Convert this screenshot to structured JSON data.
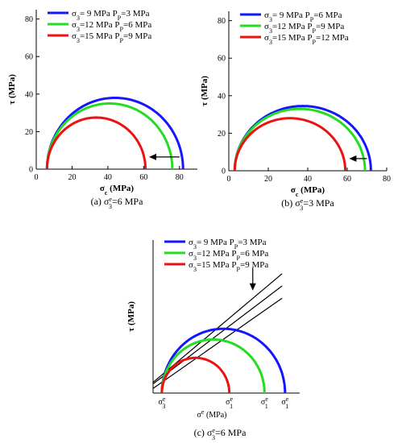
{
  "chart_data": [
    {
      "type": "line",
      "caption": "(a) σ",
      "caption_sup": "e",
      "caption_sub": "3",
      "caption_rest": "=6 MPa",
      "xlabel": "σ",
      "xlabel_sub": "c",
      "xlabel_unit": " (MPa)",
      "ylabel": "τ  (MPa)",
      "xlim": [
        0,
        90
      ],
      "ylim": [
        0,
        85
      ],
      "xticks": [
        "0",
        "20",
        "40",
        "60",
        "80"
      ],
      "yticks": [
        "0",
        "20",
        "40",
        "60",
        "80"
      ],
      "annotation": "arrow pointing left",
      "series": [
        {
          "name": "σ3= 9 MPa  PP=3 MPa",
          "legend": {
            "a": "σ",
            "a_sub": "3",
            "b": "= 9 MPa   P",
            "b_sub": "P",
            "c": "=3 MPa"
          },
          "color": "#1515ff",
          "sigma3": 6,
          "sigma1": 82
        },
        {
          "name": "σ3=12 MPa  PP=6 MPa",
          "legend": {
            "a": "σ",
            "a_sub": "3",
            "b": "=12 MPa  P",
            "b_sub": "P",
            "c": "=6 MPa"
          },
          "color": "#22dd22",
          "sigma3": 6,
          "sigma1": 76
        },
        {
          "name": "σ3=15 MPa  PP=9 MPa",
          "legend": {
            "a": "σ",
            "a_sub": "3",
            "b": "=15 MPa  P",
            "b_sub": "P",
            "c": "=9 MPa"
          },
          "color": "#ee1111",
          "sigma3": 6,
          "sigma1": 61
        }
      ]
    },
    {
      "type": "line",
      "caption": "(b) σ",
      "caption_sup": "e",
      "caption_sub": "3",
      "caption_rest": "=3 MPa",
      "xlabel": "σ",
      "xlabel_sub": "c",
      "xlabel_unit": " (MPa)",
      "ylabel": "τ  (MPa)",
      "xlim": [
        0,
        80
      ],
      "ylim": [
        0,
        85
      ],
      "xticks": [
        "0",
        "20",
        "40",
        "60",
        "80"
      ],
      "yticks": [
        "0",
        "20",
        "40",
        "60",
        "80"
      ],
      "annotation": "arrow pointing left",
      "series": [
        {
          "name": "σ3= 9 MPa  PP=6 MPa",
          "legend": {
            "a": "σ",
            "a_sub": "3",
            "b": "= 9 MPa   P",
            "b_sub": "P",
            "c": "=6 MPa"
          },
          "color": "#1515ff",
          "sigma3": 3,
          "sigma1": 72
        },
        {
          "name": "σ3=12 MPa  PP=9 MPa",
          "legend": {
            "a": "σ",
            "a_sub": "3",
            "b": "=12 MPa  P",
            "b_sub": "P",
            "c": "=9 MPa"
          },
          "color": "#22dd22",
          "sigma3": 3,
          "sigma1": 69
        },
        {
          "name": "σ3=15 MPa  PP=12 MPa",
          "legend": {
            "a": "σ",
            "a_sub": "3",
            "b": "=15 MPa  P",
            "b_sub": "P",
            "c": "=12 MPa"
          },
          "color": "#ee1111",
          "sigma3": 3,
          "sigma1": 59
        }
      ]
    },
    {
      "type": "line",
      "caption": "(c) σ",
      "caption_sup": "e",
      "caption_sub": "3",
      "caption_rest": "=6 MPa",
      "xlabel": "σ",
      "xlabel_sup": "e",
      "xlabel_unit": " (MPa)",
      "ylabel": "τ  (MPa)",
      "xlim": [
        0,
        100
      ],
      "ylim": [
        0,
        100
      ],
      "x_markers": [
        {
          "label": "σ",
          "sup": "e",
          "sub": "3",
          "x": 6
        },
        {
          "label": "σ",
          "sup": "e",
          "sub": "1",
          "x": 52
        },
        {
          "label": "σ",
          "sup": "e",
          "sub": "1",
          "x": 76
        },
        {
          "label": "σ",
          "sup": "e",
          "sub": "1",
          "x": 90
        }
      ],
      "annotation": "arrow pointing down",
      "series": [
        {
          "name": "σ3= 9 MPa  PP=3 MPa",
          "legend": {
            "a": "σ",
            "a_sub": "3",
            "b": "= 9 MPa   P",
            "b_sub": "P",
            "c": "=3 MPa"
          },
          "color": "#1515ff",
          "sigma3": 6,
          "sigma1": 90
        },
        {
          "name": "σ3=12 MPa  PP=6 MPa",
          "legend": {
            "a": "σ",
            "a_sub": "3",
            "b": "=12 MPa  P",
            "b_sub": "P",
            "c": "=6 MPa"
          },
          "color": "#22dd22",
          "sigma3": 6,
          "sigma1": 76
        },
        {
          "name": "σ3=15 MPa  PP=9 MPa",
          "legend": {
            "a": "σ",
            "a_sub": "3",
            "b": "=15 MPa  P",
            "b_sub": "P",
            "c": "=9 MPa"
          },
          "color": "#ee1111",
          "sigma3": 6,
          "sigma1": 52
        }
      ],
      "envelopes": [
        {
          "x1": 0,
          "y1": 7,
          "x2": 88,
          "y2": 78
        },
        {
          "x1": 0,
          "y1": 6,
          "x2": 88,
          "y2": 70
        },
        {
          "x1": 0,
          "y1": 3,
          "x2": 88,
          "y2": 62
        }
      ]
    }
  ]
}
